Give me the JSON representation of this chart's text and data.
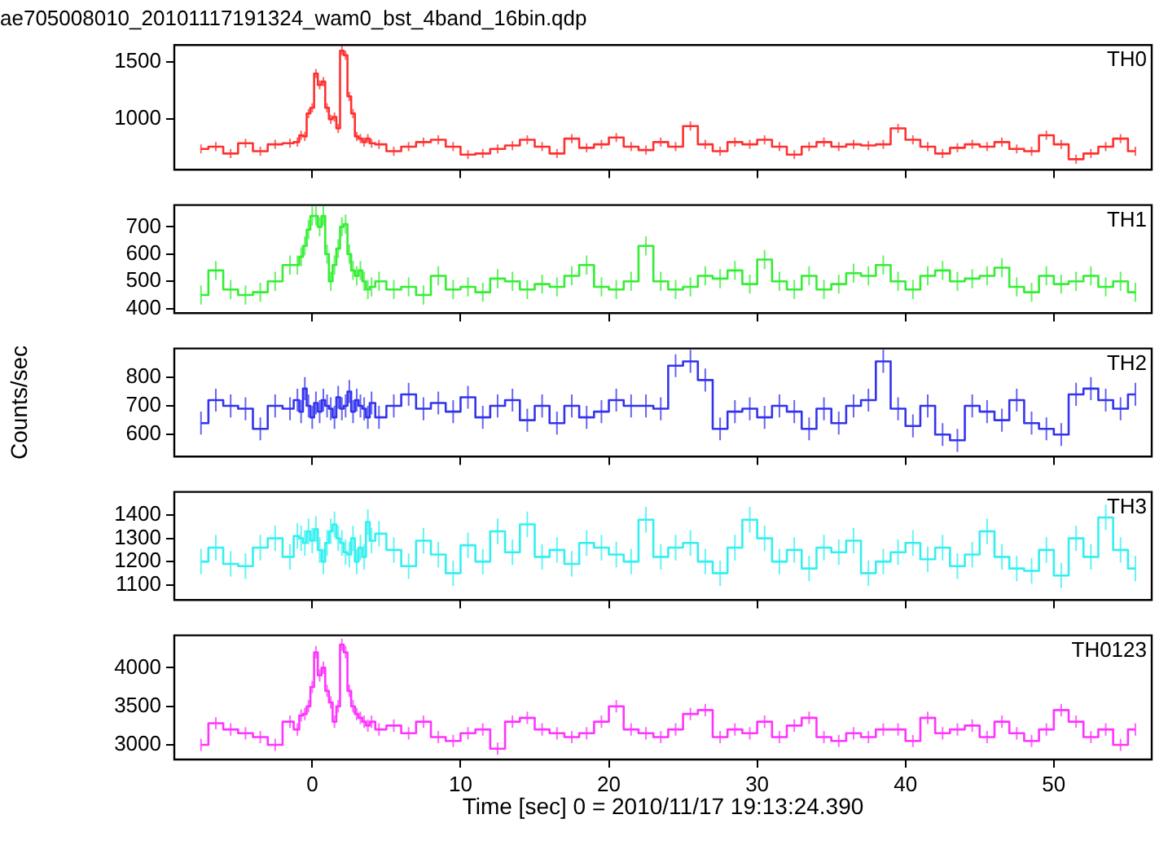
{
  "chart_data": [
    {
      "type": "step",
      "title": "ae705008010_20101117191324_wam0_bst_4band_16bin.qdp",
      "annotations": [
        "TH0"
      ],
      "x": [
        -7.5,
        -6.5,
        -5.5,
        -4.5,
        -3.5,
        -2.5,
        -1.5,
        -1,
        -0.75,
        -0.5,
        -0.25,
        0,
        0.25,
        0.5,
        0.75,
        1,
        1.25,
        1.5,
        1.75,
        2,
        2.25,
        2.5,
        2.75,
        3,
        3.25,
        3.5,
        3.75,
        4,
        4.5,
        5.5,
        6.5,
        7.5,
        8.5,
        9.5,
        10.5,
        11.5,
        12.5,
        13.5,
        14.5,
        15.5,
        16.5,
        17.5,
        18.5,
        19.5,
        20.5,
        21.5,
        22.5,
        23.5,
        24.5,
        25.5,
        26.5,
        27.5,
        28.5,
        29.5,
        30.5,
        31.5,
        32.5,
        33.5,
        34.5,
        35.5,
        36.5,
        37.5,
        38.5,
        39.5,
        40.5,
        41.5,
        42.5,
        43.5,
        44.5,
        45.5,
        46.5,
        47.5,
        48.5,
        49.5,
        50.5,
        51.5,
        52.5,
        53.5,
        54.5,
        55.5
      ],
      "series": [
        {
          "color": "#ff3030",
          "values": [
            740,
            760,
            700,
            790,
            720,
            780,
            790,
            800,
            860,
            850,
            1050,
            1100,
            1400,
            1300,
            1330,
            1100,
            1000,
            1020,
            920,
            1600,
            1560,
            1200,
            1050,
            850,
            830,
            800,
            830,
            790,
            780,
            720,
            760,
            800,
            820,
            760,
            690,
            700,
            740,
            770,
            820,
            760,
            700,
            830,
            750,
            780,
            840,
            760,
            730,
            800,
            760,
            940,
            780,
            720,
            800,
            780,
            820,
            760,
            690,
            760,
            800,
            760,
            780,
            770,
            780,
            920,
            820,
            760,
            700,
            750,
            780,
            760,
            800,
            740,
            720,
            860,
            780,
            650,
            700,
            760,
            830,
            720
          ],
          "errors": [
            40,
            40,
            40,
            40,
            40,
            40,
            40,
            40,
            40,
            40,
            40,
            40,
            40,
            40,
            40,
            40,
            40,
            40,
            40,
            40,
            40,
            40,
            40,
            40,
            40,
            40,
            40,
            40,
            40,
            40,
            40,
            40,
            40,
            40,
            40,
            40,
            40,
            40,
            40,
            40,
            40,
            40,
            40,
            40,
            40,
            40,
            40,
            40,
            40,
            40,
            40,
            40,
            40,
            40,
            40,
            40,
            40,
            40,
            40,
            40,
            40,
            40,
            40,
            40,
            40,
            40,
            40,
            40,
            40,
            40,
            40,
            40,
            40,
            40,
            40,
            40,
            40,
            40,
            40,
            40
          ]
        }
      ],
      "xlim": [
        -9.3,
        56.6
      ],
      "xticks": [
        0,
        10,
        20,
        30,
        40,
        50
      ],
      "ylim": [
        557,
        1650
      ],
      "yticks": [
        1000,
        1500
      ],
      "tick_labels": "y"
    },
    {
      "type": "step",
      "annotations": [
        "TH1"
      ],
      "x": [
        -7.5,
        -6.5,
        -5.5,
        -4.5,
        -3.5,
        -2.5,
        -1.5,
        -1,
        -0.75,
        -0.5,
        -0.25,
        0,
        0.25,
        0.5,
        0.75,
        1,
        1.25,
        1.5,
        1.75,
        2,
        2.25,
        2.5,
        2.75,
        3,
        3.25,
        3.5,
        3.75,
        4,
        4.5,
        5.5,
        6.5,
        7.5,
        8.5,
        9.5,
        10.5,
        11.5,
        12.5,
        13.5,
        14.5,
        15.5,
        16.5,
        17.5,
        18.5,
        19.5,
        20.5,
        21.5,
        22.5,
        23.5,
        24.5,
        25.5,
        26.5,
        27.5,
        28.5,
        29.5,
        30.5,
        31.5,
        32.5,
        33.5,
        34.5,
        35.5,
        36.5,
        37.5,
        38.5,
        39.5,
        40.5,
        41.5,
        42.5,
        43.5,
        44.5,
        45.5,
        46.5,
        47.5,
        48.5,
        49.5,
        50.5,
        51.5,
        52.5,
        53.5,
        54.5,
        55.5
      ],
      "series": [
        {
          "color": "#33ee33",
          "values": [
            450,
            540,
            470,
            450,
            460,
            500,
            560,
            560,
            590,
            630,
            690,
            740,
            740,
            700,
            740,
            600,
            500,
            560,
            620,
            700,
            710,
            600,
            540,
            520,
            540,
            500,
            470,
            480,
            500,
            470,
            480,
            450,
            520,
            470,
            480,
            460,
            510,
            500,
            470,
            490,
            480,
            520,
            560,
            480,
            470,
            500,
            630,
            500,
            470,
            480,
            520,
            510,
            540,
            490,
            580,
            500,
            470,
            520,
            470,
            490,
            530,
            520,
            560,
            500,
            470,
            520,
            540,
            500,
            510,
            520,
            550,
            480,
            460,
            520,
            490,
            500,
            520,
            480,
            500,
            460
          ],
          "errors": [
            35,
            35,
            35,
            35,
            35,
            35,
            35,
            35,
            35,
            35,
            35,
            35,
            35,
            35,
            35,
            35,
            35,
            35,
            35,
            35,
            35,
            35,
            35,
            35,
            35,
            35,
            35,
            35,
            35,
            35,
            35,
            35,
            35,
            35,
            35,
            35,
            35,
            35,
            35,
            35,
            35,
            35,
            35,
            35,
            35,
            35,
            35,
            35,
            35,
            35,
            35,
            35,
            35,
            35,
            35,
            35,
            35,
            35,
            35,
            35,
            35,
            35,
            35,
            35,
            35,
            35,
            35,
            35,
            35,
            35,
            35,
            35,
            35,
            35,
            35,
            35,
            35,
            35,
            35,
            35
          ]
        }
      ],
      "xlim": [
        -9.3,
        56.6
      ],
      "xticks": [
        0,
        10,
        20,
        30,
        40,
        50
      ],
      "ylim": [
        383,
        780
      ],
      "yticks": [
        400,
        500,
        600,
        700
      ],
      "tick_labels": "y"
    },
    {
      "type": "step",
      "ylabel": "Counts/sec",
      "annotations": [
        "TH2"
      ],
      "x": [
        -7.5,
        -6.5,
        -5.5,
        -4.5,
        -3.5,
        -2.5,
        -1.5,
        -1,
        -0.75,
        -0.5,
        -0.25,
        0,
        0.25,
        0.5,
        0.75,
        1,
        1.25,
        1.5,
        1.75,
        2,
        2.25,
        2.5,
        2.75,
        3,
        3.25,
        3.5,
        3.75,
        4,
        4.5,
        5.5,
        6.5,
        7.5,
        8.5,
        9.5,
        10.5,
        11.5,
        12.5,
        13.5,
        14.5,
        15.5,
        16.5,
        17.5,
        18.5,
        19.5,
        20.5,
        21.5,
        22.5,
        23.5,
        24.5,
        25.5,
        26.5,
        27.5,
        28.5,
        29.5,
        30.5,
        31.5,
        32.5,
        33.5,
        34.5,
        35.5,
        36.5,
        37.5,
        38.5,
        39.5,
        40.5,
        41.5,
        42.5,
        43.5,
        44.5,
        45.5,
        46.5,
        47.5,
        48.5,
        49.5,
        50.5,
        51.5,
        52.5,
        53.5,
        54.5,
        55.5
      ],
      "series": [
        {
          "color": "#3333ee",
          "values": [
            640,
            720,
            700,
            690,
            620,
            700,
            690,
            720,
            680,
            760,
            700,
            660,
            710,
            680,
            720,
            700,
            690,
            660,
            730,
            690,
            700,
            750,
            680,
            720,
            700,
            690,
            660,
            710,
            660,
            700,
            740,
            690,
            710,
            680,
            730,
            660,
            700,
            720,
            650,
            700,
            640,
            700,
            660,
            680,
            720,
            700,
            700,
            690,
            840,
            855,
            790,
            620,
            680,
            690,
            660,
            700,
            680,
            620,
            690,
            640,
            700,
            720,
            855,
            690,
            630,
            700,
            600,
            580,
            700,
            680,
            650,
            720,
            640,
            620,
            600,
            740,
            760,
            720,
            690,
            740
          ],
          "errors": [
            40,
            40,
            40,
            40,
            40,
            40,
            40,
            40,
            40,
            40,
            40,
            40,
            40,
            40,
            40,
            40,
            40,
            40,
            40,
            40,
            40,
            40,
            40,
            40,
            40,
            40,
            40,
            40,
            40,
            40,
            40,
            40,
            40,
            40,
            40,
            40,
            40,
            40,
            40,
            40,
            40,
            40,
            40,
            40,
            40,
            40,
            40,
            40,
            40,
            40,
            40,
            40,
            40,
            40,
            40,
            40,
            40,
            40,
            40,
            40,
            40,
            40,
            40,
            40,
            40,
            40,
            40,
            40,
            40,
            40,
            40,
            40,
            40,
            40,
            40,
            40,
            40,
            40,
            40,
            40
          ]
        }
      ],
      "xlim": [
        -9.3,
        56.6
      ],
      "xticks": [
        0,
        10,
        20,
        30,
        40,
        50
      ],
      "ylim": [
        523,
        900
      ],
      "yticks": [
        600,
        700,
        800
      ],
      "tick_labels": "y"
    },
    {
      "type": "step",
      "annotations": [
        "TH3"
      ],
      "x": [
        -7.5,
        -6.5,
        -5.5,
        -4.5,
        -3.5,
        -2.5,
        -1.5,
        -1,
        -0.75,
        -0.5,
        -0.25,
        0,
        0.25,
        0.5,
        0.75,
        1,
        1.25,
        1.5,
        1.75,
        2,
        2.25,
        2.5,
        2.75,
        3,
        3.25,
        3.5,
        3.75,
        4,
        4.5,
        5.5,
        6.5,
        7.5,
        8.5,
        9.5,
        10.5,
        11.5,
        12.5,
        13.5,
        14.5,
        15.5,
        16.5,
        17.5,
        18.5,
        19.5,
        20.5,
        21.5,
        22.5,
        23.5,
        24.5,
        25.5,
        26.5,
        27.5,
        28.5,
        29.5,
        30.5,
        31.5,
        32.5,
        33.5,
        34.5,
        35.5,
        36.5,
        37.5,
        38.5,
        39.5,
        40.5,
        41.5,
        42.5,
        43.5,
        44.5,
        45.5,
        46.5,
        47.5,
        48.5,
        49.5,
        50.5,
        51.5,
        52.5,
        53.5,
        54.5,
        55.5
      ],
      "series": [
        {
          "color": "#33f0f0",
          "values": [
            1200,
            1260,
            1190,
            1180,
            1260,
            1300,
            1220,
            1310,
            1300,
            1280,
            1330,
            1290,
            1340,
            1250,
            1200,
            1280,
            1330,
            1360,
            1300,
            1280,
            1240,
            1230,
            1300,
            1200,
            1260,
            1220,
            1370,
            1290,
            1320,
            1250,
            1180,
            1290,
            1230,
            1150,
            1270,
            1200,
            1330,
            1240,
            1360,
            1220,
            1250,
            1190,
            1280,
            1260,
            1230,
            1200,
            1380,
            1220,
            1260,
            1280,
            1200,
            1150,
            1260,
            1380,
            1300,
            1200,
            1250,
            1170,
            1260,
            1240,
            1290,
            1150,
            1200,
            1240,
            1280,
            1210,
            1260,
            1180,
            1230,
            1330,
            1220,
            1170,
            1160,
            1250,
            1140,
            1300,
            1220,
            1390,
            1250,
            1170
          ],
          "errors": [
            55,
            55,
            55,
            55,
            55,
            55,
            55,
            55,
            55,
            55,
            55,
            55,
            55,
            55,
            55,
            55,
            55,
            55,
            55,
            55,
            55,
            55,
            55,
            55,
            55,
            55,
            55,
            55,
            55,
            55,
            55,
            55,
            55,
            55,
            55,
            55,
            55,
            55,
            55,
            55,
            55,
            55,
            55,
            55,
            55,
            55,
            55,
            55,
            55,
            55,
            55,
            55,
            55,
            55,
            55,
            55,
            55,
            55,
            55,
            55,
            55,
            55,
            55,
            55,
            55,
            55,
            55,
            55,
            55,
            55,
            55,
            55,
            55,
            55,
            55,
            55,
            55,
            55,
            55,
            55
          ]
        }
      ],
      "xlim": [
        -9.3,
        56.6
      ],
      "xticks": [
        0,
        10,
        20,
        30,
        40,
        50
      ],
      "ylim": [
        1034,
        1500
      ],
      "yticks": [
        1100,
        1200,
        1300,
        1400
      ],
      "tick_labels": "y"
    },
    {
      "type": "step",
      "xlabel": "Time [sec] 0 = 2010/11/17 19:13:24.390",
      "annotations": [
        "TH0123"
      ],
      "x": [
        -7.5,
        -6.5,
        -5.5,
        -4.5,
        -3.5,
        -2.5,
        -1.5,
        -1,
        -0.75,
        -0.5,
        -0.25,
        0,
        0.25,
        0.5,
        0.75,
        1,
        1.25,
        1.5,
        1.75,
        2,
        2.25,
        2.5,
        2.75,
        3,
        3.25,
        3.5,
        3.75,
        4,
        4.5,
        5.5,
        6.5,
        7.5,
        8.5,
        9.5,
        10.5,
        11.5,
        12.5,
        13.5,
        14.5,
        15.5,
        16.5,
        17.5,
        18.5,
        19.5,
        20.5,
        21.5,
        22.5,
        23.5,
        24.5,
        25.5,
        26.5,
        27.5,
        28.5,
        29.5,
        30.5,
        31.5,
        32.5,
        33.5,
        34.5,
        35.5,
        36.5,
        37.5,
        38.5,
        39.5,
        40.5,
        41.5,
        42.5,
        43.5,
        44.5,
        45.5,
        46.5,
        47.5,
        48.5,
        49.5,
        50.5,
        51.5,
        52.5,
        53.5,
        54.5,
        55.5
      ],
      "series": [
        {
          "color": "#ff33ff",
          "values": [
            3000,
            3280,
            3200,
            3150,
            3100,
            3000,
            3300,
            3200,
            3380,
            3400,
            3500,
            3750,
            4200,
            3900,
            4000,
            3700,
            3550,
            3300,
            3500,
            4300,
            4200,
            3700,
            3500,
            3400,
            3350,
            3300,
            3250,
            3300,
            3200,
            3250,
            3150,
            3300,
            3100,
            3050,
            3150,
            3200,
            2950,
            3300,
            3350,
            3200,
            3150,
            3100,
            3150,
            3300,
            3500,
            3200,
            3150,
            3100,
            3200,
            3400,
            3450,
            3100,
            3200,
            3150,
            3300,
            3100,
            3250,
            3350,
            3100,
            3050,
            3150,
            3100,
            3200,
            3200,
            3050,
            3350,
            3150,
            3200,
            3250,
            3100,
            3300,
            3150,
            3050,
            3200,
            3450,
            3300,
            3100,
            3200,
            3000,
            3200
          ],
          "errors": [
            80,
            80,
            80,
            80,
            80,
            80,
            80,
            80,
            80,
            80,
            80,
            80,
            80,
            80,
            80,
            80,
            80,
            80,
            80,
            80,
            80,
            80,
            80,
            80,
            80,
            80,
            80,
            80,
            80,
            80,
            80,
            80,
            80,
            80,
            80,
            80,
            80,
            80,
            80,
            80,
            80,
            80,
            80,
            80,
            80,
            80,
            80,
            80,
            80,
            80,
            80,
            80,
            80,
            80,
            80,
            80,
            80,
            80,
            80,
            80,
            80,
            80,
            80,
            80,
            80,
            80,
            80,
            80,
            80,
            80,
            80,
            80,
            80,
            80,
            80,
            80,
            80,
            80,
            80,
            80
          ]
        }
      ],
      "xlim": [
        -9.3,
        56.6
      ],
      "xticks": [
        0,
        10,
        20,
        30,
        40,
        50
      ],
      "ylim": [
        2810,
        4420
      ],
      "yticks": [
        3000,
        3500,
        4000
      ]
    }
  ]
}
